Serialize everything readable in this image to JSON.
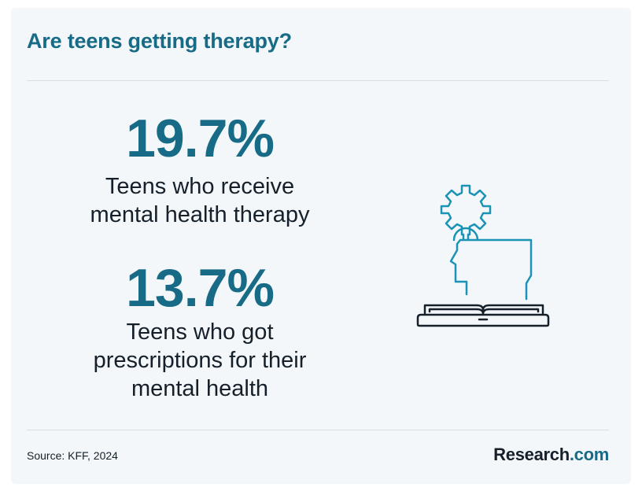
{
  "title": "Are teens getting therapy?",
  "stats": [
    {
      "value": "19.7%",
      "label_lines": [
        "Teens who receive",
        "mental health therapy"
      ]
    },
    {
      "value": "13.7%",
      "label_lines": [
        "Teens who got",
        "prescriptions for their",
        "mental health"
      ]
    }
  ],
  "illustration": {
    "icon": "head-gear-book-icon",
    "colors": {
      "outline": "#15202b",
      "accent": "#1a93b4"
    }
  },
  "source": "Source: KFF, 2024",
  "brand": {
    "name": "Research",
    "suffix": ".com"
  },
  "colors": {
    "accent": "#176b86",
    "text": "#15202b",
    "card": "#f3f7f9",
    "divider": "#d7dee3"
  }
}
